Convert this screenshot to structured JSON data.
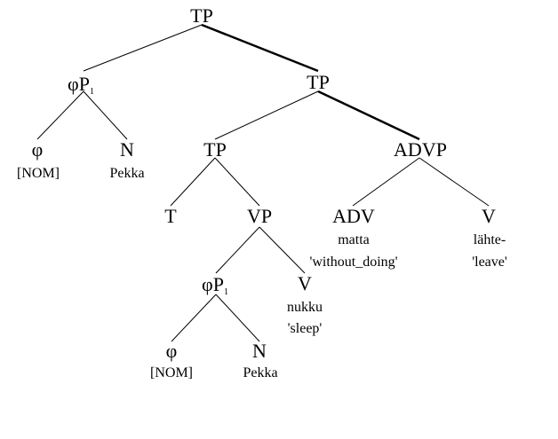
{
  "nodes": {
    "tp_root": "TP",
    "phip_top": "φP",
    "phip_top_index": "1",
    "tp_mid": "TP",
    "phi_top": "φ",
    "nom_top": "[NOM]",
    "n_top": "N",
    "pekka_top": "Pekka",
    "tp_low": "TP",
    "advp": "ADVP",
    "t": "T",
    "vp": "VP",
    "adv": "ADV",
    "matta": "matta",
    "without_doing": "'without_doing'",
    "v_right": "V",
    "lahte": "lähte-",
    "leave": "'leave'",
    "phip_low": "φP",
    "phip_low_index": "1",
    "v_mid": "V",
    "nukku": "nukku",
    "sleep": "'sleep'",
    "phi_low": "φ",
    "nom_low": "[NOM]",
    "n_low": "N",
    "pekka_low": "Pekka"
  }
}
